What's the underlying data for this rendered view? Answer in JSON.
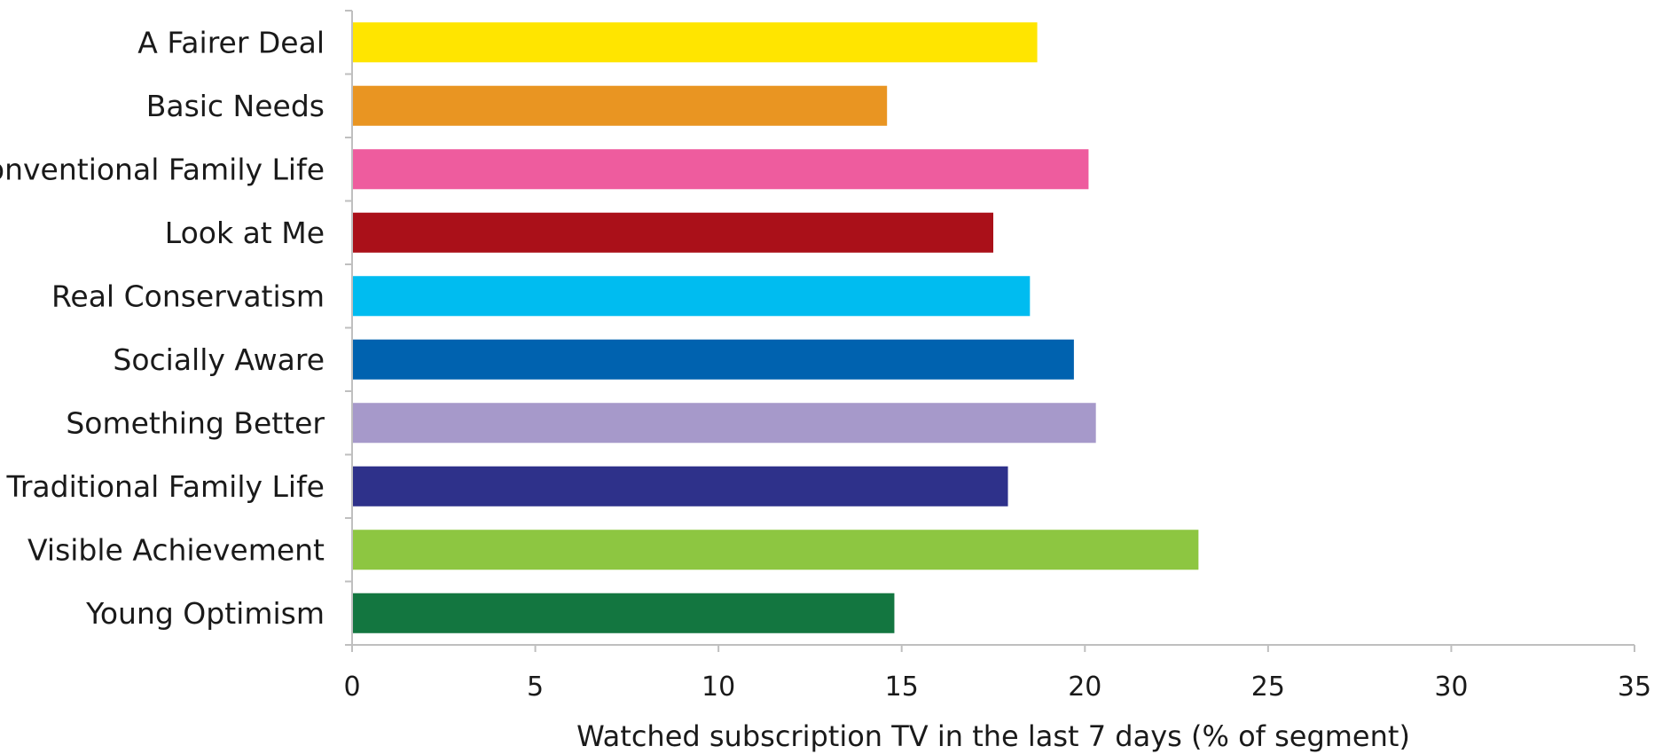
{
  "chart_data": {
    "type": "bar",
    "orientation": "horizontal",
    "categories": [
      "A Fairer Deal",
      "Basic Needs",
      "Conventional Family Life",
      "Look at Me",
      "Real Conservatism",
      "Socially Aware",
      "Something Better",
      "Traditional Family Life",
      "Visible Achievement",
      "Young Optimism"
    ],
    "values": [
      18.7,
      14.6,
      20.1,
      17.5,
      18.5,
      19.7,
      20.3,
      17.9,
      23.1,
      14.8
    ],
    "colors": [
      "#FFE500",
      "#E99522",
      "#EE5C9E",
      "#AA1019",
      "#00BCF0",
      "#0062AF",
      "#A699CA",
      "#2E318A",
      "#8DC641",
      "#137640"
    ],
    "xlabel": "Watched subscription TV in the last 7 days (% of segment)",
    "ylabel": "",
    "title": "",
    "xlim": [
      0,
      35
    ],
    "xticks": [
      "0",
      "5",
      "10",
      "15",
      "20",
      "25",
      "30",
      "35"
    ],
    "xtick_values": [
      0,
      5,
      10,
      15,
      20,
      25,
      30,
      35
    ],
    "grid": false,
    "legend": "none"
  }
}
